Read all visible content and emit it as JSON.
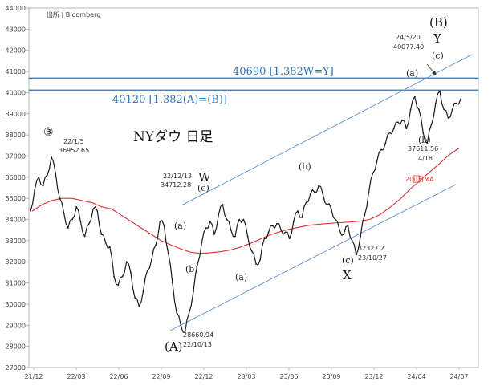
{
  "chart_data": {
    "type": "line",
    "title": "NYダウ 日足",
    "source": "出所 | Bloomberg",
    "wave_marker": "③",
    "ylim": [
      27000,
      44000
    ],
    "y_ticks": [
      "27000",
      "28000",
      "29000",
      "30000",
      "31000",
      "32000",
      "33000",
      "34000",
      "35000",
      "36000",
      "37000",
      "38000",
      "39000",
      "40000",
      "41000",
      "42000",
      "43000",
      "44000"
    ],
    "x_ticks": [
      "21/12",
      "22/03",
      "22/06",
      "22/09",
      "22/12",
      "23/03",
      "23/06",
      "23/09",
      "23/12",
      "24/04",
      "24/07"
    ],
    "series": [
      {
        "role": "price",
        "values": [
          34400,
          35400,
          36000,
          35600,
          36100,
          36952.65,
          36200,
          35000,
          34300,
          33600,
          34000,
          34600,
          33900,
          33200,
          33800,
          34500,
          34400,
          33300,
          32900,
          32700,
          31300,
          30900,
          31300,
          32000,
          31500,
          30300,
          29900,
          30600,
          31600,
          32100,
          32800,
          33900,
          33700,
          32400,
          31000,
          29600,
          29000,
          28660.94,
          29600,
          30600,
          31900,
          32900,
          33600,
          33900,
          33300,
          34200,
          34712.28,
          34000,
          33500,
          33200,
          34000,
          34000,
          33200,
          32500,
          31900,
          32100,
          33100,
          33400,
          33700,
          33800,
          33500,
          33400,
          33100,
          33900,
          34400,
          34100,
          34800,
          35200,
          35300,
          35600,
          35200,
          34700,
          34500,
          34000,
          33500,
          33300,
          33700,
          33000,
          32327.2,
          33200,
          34200,
          35300,
          36200,
          36800,
          37300,
          37600,
          38100,
          38300,
          38600,
          38700,
          38300,
          39200,
          39800,
          39200,
          38100,
          37611.56,
          38500,
          39500,
          40077.4,
          39200,
          38800,
          39200,
          39500,
          39700
        ]
      },
      {
        "role": "moving_average",
        "name": "200日MA",
        "values": [
          34400,
          34700,
          34900,
          35000,
          35000,
          34900,
          34800,
          34600,
          34500,
          34200,
          33900,
          33600,
          33300,
          33000,
          32800,
          32600,
          32450,
          32400,
          32430,
          32480,
          32560,
          32700,
          32870,
          33080,
          33280,
          33430,
          33550,
          33650,
          33730,
          33780,
          33820,
          33850,
          33880,
          33920,
          34000,
          34220,
          34560,
          34940,
          35400,
          35820,
          36230,
          36630,
          37060,
          37380
        ]
      }
    ],
    "annotations": {
      "peak": [
        "22/1/5",
        "36952.65"
      ],
      "w_point": [
        "22/12/13",
        "34712.28"
      ],
      "a_low": [
        "28660.94",
        "22/10/13"
      ],
      "x_low": [
        "32327.2",
        "23/10/27"
      ],
      "b_peak": [
        "24/5/20",
        "40077.40"
      ],
      "b_low": [
        "37611.56",
        "4/18"
      ]
    },
    "levels": [
      {
        "value": 40690,
        "label": "40690 [1.382W=Y]",
        "color": "#2e75b6"
      },
      {
        "value": 40120,
        "label": "40120 [1.382(A)=(B)]",
        "color": "#2e75b6"
      }
    ],
    "wave_labels": {
      "A": "(A)",
      "W": "W",
      "c1": "(c)",
      "a1": "(a)",
      "b1": "(b)",
      "a2": "(a)",
      "b2": "(b)",
      "c2": "(c)",
      "X": "X",
      "a3": "(a)",
      "b3": "(b)",
      "c3": "(c)",
      "B": "(B)",
      "Y": "Y"
    },
    "colors": {
      "price": "#1a1a1a",
      "ma": "#e03030",
      "channel": "#5b8fd6",
      "level": "#2e75b6"
    }
  }
}
